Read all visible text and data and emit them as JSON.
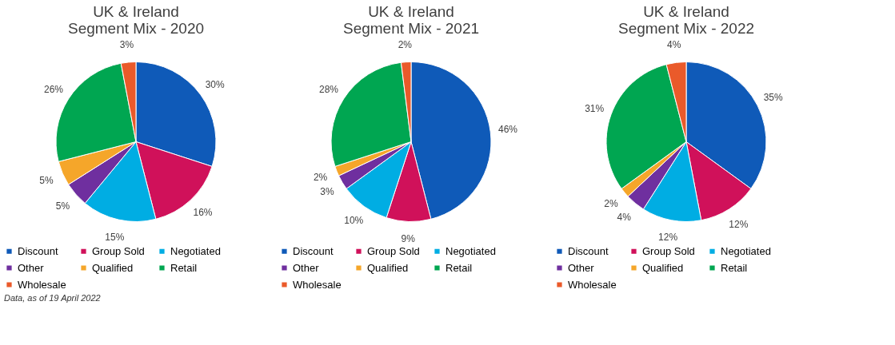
{
  "chart_data": [
    {
      "type": "pie",
      "title": "UK & Ireland\nSegment Mix - 2020",
      "categories": [
        "Discount",
        "Group Sold",
        "Negotiated",
        "Other",
        "Qualified",
        "Retail",
        "Wholesale"
      ],
      "values": [
        30,
        16,
        15,
        5,
        5,
        26,
        3
      ],
      "value_labels": [
        "30%",
        "16%",
        "15%",
        "5%",
        "5%",
        "26%",
        "3%"
      ],
      "colors": [
        "#0f5ab8",
        "#d0115a",
        "#00ade3",
        "#6f2f9f",
        "#f5a62a",
        "#00a651",
        "#ea5a2a"
      ],
      "legend": "bottom",
      "annotations": [
        "Data, as of 19 April 2022"
      ]
    },
    {
      "type": "pie",
      "title": "UK & Ireland\nSegment Mix - 2021",
      "categories": [
        "Discount",
        "Group Sold",
        "Negotiated",
        "Other",
        "Qualified",
        "Retail",
        "Wholesale"
      ],
      "values": [
        46,
        9,
        10,
        3,
        2,
        28,
        2
      ],
      "value_labels": [
        "46%",
        "9%",
        "10%",
        "3%",
        "2%",
        "28%",
        "2%"
      ],
      "colors": [
        "#0f5ab8",
        "#d0115a",
        "#00ade3",
        "#6f2f9f",
        "#f5a62a",
        "#00a651",
        "#ea5a2a"
      ],
      "legend": "bottom"
    },
    {
      "type": "pie",
      "title": "UK & Ireland\nSegment Mix - 2022",
      "categories": [
        "Discount",
        "Group Sold",
        "Negotiated",
        "Other",
        "Qualified",
        "Retail",
        "Wholesale"
      ],
      "values": [
        35,
        12,
        12,
        4,
        2,
        31,
        4
      ],
      "value_labels": [
        "35%",
        "12%",
        "12%",
        "4%",
        "2%",
        "31%",
        "4%"
      ],
      "colors": [
        "#0f5ab8",
        "#d0115a",
        "#00ade3",
        "#6f2f9f",
        "#f5a62a",
        "#00a651",
        "#ea5a2a"
      ],
      "legend": "bottom"
    }
  ]
}
